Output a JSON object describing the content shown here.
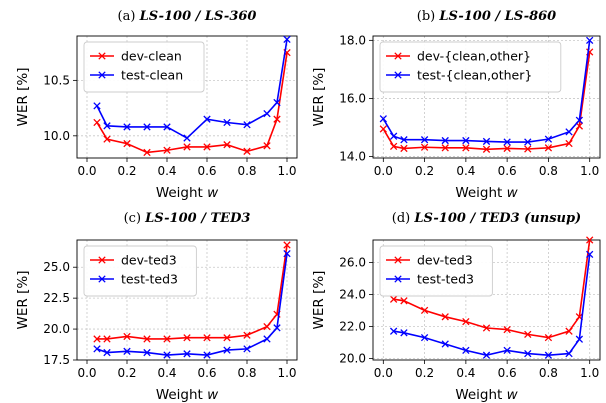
{
  "chart_data": [
    {
      "type": "line",
      "label": "(a)",
      "title": "LS-100 / LS-360",
      "xlabel": "Weight",
      "xlabel_var": "w",
      "ylabel": "WER [%]",
      "xlim": [
        -0.05,
        1.05
      ],
      "ylim": [
        9.8,
        10.9
      ],
      "xticks": [
        "0.0",
        "0.2",
        "0.4",
        "0.6",
        "0.8",
        "1.0"
      ],
      "yticks": [
        "10.0",
        "10.5"
      ],
      "grid": true,
      "legend_position": "upper-left",
      "x": [
        0.05,
        0.1,
        0.2,
        0.3,
        0.4,
        0.5,
        0.6,
        0.7,
        0.8,
        0.9,
        0.95,
        1.0
      ],
      "series": [
        {
          "name": "dev-clean",
          "color": "#ff0000",
          "values": [
            10.12,
            9.97,
            9.93,
            9.85,
            9.87,
            9.9,
            9.9,
            9.92,
            9.86,
            9.91,
            10.15,
            10.75
          ]
        },
        {
          "name": "test-clean",
          "color": "#0000ff",
          "values": [
            10.27,
            10.09,
            10.08,
            10.08,
            10.08,
            9.98,
            10.15,
            10.12,
            10.1,
            10.2,
            10.3,
            10.87
          ]
        }
      ]
    },
    {
      "type": "line",
      "label": "(b)",
      "title": "LS-100 / LS-860",
      "xlabel": "Weight",
      "xlabel_var": "w",
      "ylabel": "WER [%]",
      "xlim": [
        -0.05,
        1.05
      ],
      "ylim": [
        13.95,
        18.15
      ],
      "xticks": [
        "0.0",
        "0.2",
        "0.4",
        "0.6",
        "0.8",
        "1.0"
      ],
      "yticks": [
        "14.0",
        "16.0",
        "18.0"
      ],
      "grid": true,
      "legend_position": "upper-left",
      "x": [
        0.0,
        0.05,
        0.1,
        0.2,
        0.3,
        0.4,
        0.5,
        0.6,
        0.7,
        0.8,
        0.9,
        0.95,
        1.0
      ],
      "series": [
        {
          "name": "dev-{clean,other}",
          "color": "#ff0000",
          "values": [
            14.95,
            14.35,
            14.28,
            14.32,
            14.3,
            14.3,
            14.25,
            14.28,
            14.26,
            14.3,
            14.45,
            15.05,
            17.6
          ]
        },
        {
          "name": "test-{clean,other}",
          "color": "#0000ff",
          "values": [
            15.3,
            14.7,
            14.58,
            14.58,
            14.55,
            14.55,
            14.52,
            14.5,
            14.5,
            14.6,
            14.85,
            15.25,
            18.0
          ]
        }
      ]
    },
    {
      "type": "line",
      "label": "(c)",
      "title": "LS-100 / TED3",
      "xlabel": "Weight",
      "xlabel_var": "w",
      "ylabel": "WER [%]",
      "xlim": [
        -0.05,
        1.05
      ],
      "ylim": [
        17.5,
        27.2
      ],
      "xticks": [
        "0.0",
        "0.2",
        "0.4",
        "0.6",
        "0.8",
        "1.0"
      ],
      "yticks": [
        "17.5",
        "20.0",
        "22.5",
        "25.0"
      ],
      "grid": true,
      "legend_position": "upper-left",
      "x": [
        0.05,
        0.1,
        0.2,
        0.3,
        0.4,
        0.5,
        0.6,
        0.7,
        0.8,
        0.9,
        0.95,
        1.0
      ],
      "series": [
        {
          "name": "dev-ted3",
          "color": "#ff0000",
          "values": [
            19.2,
            19.2,
            19.4,
            19.2,
            19.2,
            19.3,
            19.3,
            19.3,
            19.5,
            20.2,
            21.2,
            26.8
          ]
        },
        {
          "name": "test-ted3",
          "color": "#0000ff",
          "values": [
            18.4,
            18.1,
            18.2,
            18.1,
            17.9,
            18.0,
            17.9,
            18.3,
            18.4,
            19.2,
            20.1,
            26.1
          ]
        }
      ]
    },
    {
      "type": "line",
      "label": "(d)",
      "title": "LS-100 / TED3 (unsup)",
      "xlabel": "Weight",
      "xlabel_var": "w",
      "ylabel": "WER [%]",
      "xlim": [
        -0.05,
        1.05
      ],
      "ylim": [
        19.9,
        27.4
      ],
      "xticks": [
        "0.0",
        "0.2",
        "0.4",
        "0.6",
        "0.8",
        "1.0"
      ],
      "yticks": [
        "20.0",
        "22.0",
        "24.0",
        "26.0"
      ],
      "grid": true,
      "legend_position": "upper-left",
      "x": [
        0.05,
        0.1,
        0.2,
        0.3,
        0.4,
        0.5,
        0.6,
        0.7,
        0.8,
        0.9,
        0.95,
        1.0
      ],
      "series": [
        {
          "name": "dev-ted3",
          "color": "#ff0000",
          "values": [
            23.7,
            23.6,
            23.0,
            22.6,
            22.3,
            21.9,
            21.8,
            21.5,
            21.3,
            21.7,
            22.6,
            27.4
          ]
        },
        {
          "name": "test-ted3",
          "color": "#0000ff",
          "values": [
            21.7,
            21.6,
            21.3,
            20.9,
            20.5,
            20.2,
            20.5,
            20.3,
            20.2,
            20.3,
            21.2,
            26.5
          ]
        }
      ]
    }
  ]
}
